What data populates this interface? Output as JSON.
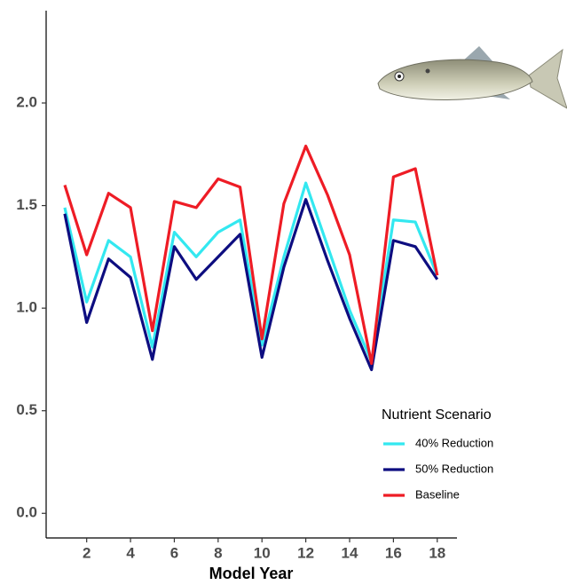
{
  "chart_data": {
    "type": "line",
    "x": [
      1,
      2,
      3,
      4,
      5,
      6,
      7,
      8,
      9,
      10,
      11,
      12,
      13,
      14,
      15,
      16,
      17,
      18
    ],
    "xlabel": "Model Year",
    "xlim": [
      0.15,
      18.9
    ],
    "xticks": [
      2,
      4,
      6,
      8,
      10,
      12,
      14,
      16,
      18
    ],
    "ylim": [
      -0.12,
      2.45
    ],
    "yticks": [
      {
        "value": 0,
        "label": "0.0"
      },
      0.5,
      {
        "value": 1,
        "label": "1.0"
      },
      1.5,
      {
        "value": 2,
        "label": "2.0"
      }
    ],
    "legend_title": "Nutrient Scenario",
    "legend_position": "bottom-right",
    "series": [
      {
        "name": "40% Reduction",
        "color": "#33e8f0",
        "values": [
          1.49,
          1.03,
          1.33,
          1.25,
          0.81,
          1.37,
          1.25,
          1.37,
          1.43,
          0.82,
          1.25,
          1.61,
          1.3,
          0.99,
          0.74,
          1.43,
          1.42,
          1.16
        ]
      },
      {
        "name": "50% Reduction",
        "color": "#0d0d80",
        "values": [
          1.46,
          0.93,
          1.24,
          1.15,
          0.75,
          1.3,
          1.14,
          1.25,
          1.36,
          0.76,
          1.2,
          1.53,
          1.23,
          0.95,
          0.7,
          1.33,
          1.3,
          1.14
        ]
      },
      {
        "name": "Baseline",
        "color": "#ee1c25",
        "values": [
          1.6,
          1.26,
          1.56,
          1.49,
          0.89,
          1.52,
          1.49,
          1.63,
          1.59,
          0.85,
          1.51,
          1.79,
          1.55,
          1.26,
          0.73,
          1.64,
          1.68,
          1.16
        ]
      }
    ]
  }
}
